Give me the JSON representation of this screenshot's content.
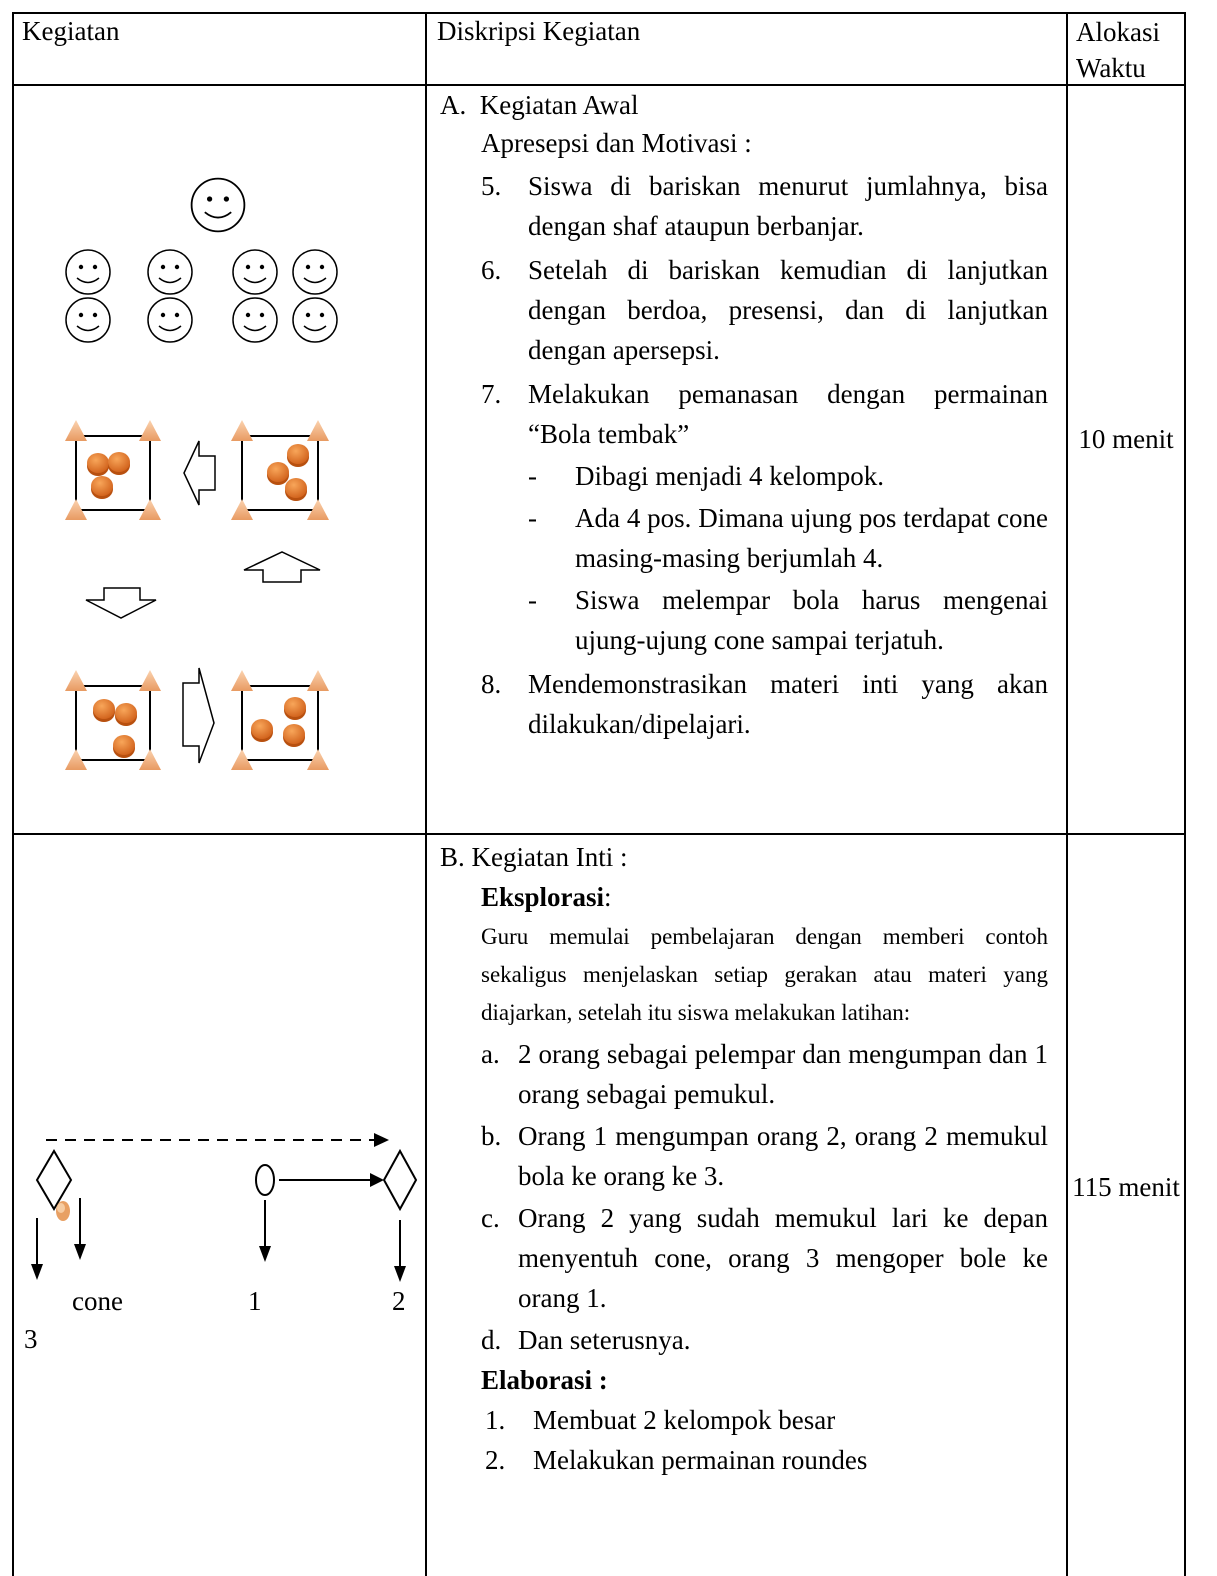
{
  "table": {
    "header": [
      "Kegiatan",
      "Diskripsi Kegiatan",
      "Alokasi Waktu"
    ],
    "rows": [
      {
        "description": {
          "heading": "A.  Kegiatan Awal",
          "subheading": "Apresepsi dan Motivasi :",
          "items": [
            {
              "number": "5.",
              "text": "Siswa di bariskan menurut jumlahnya, bisa dengan shaf ataupun berbanjar."
            },
            {
              "number": "6.",
              "text": "Setelah di bariskan kemudian di lanjutkan dengan berdoa, presensi, dan di lanjutkan dengan apersepsi."
            },
            {
              "number": "7.",
              "text": "Melakukan pemanasan dengan permainan “Bola tembak”",
              "subitems": [
                {
                  "bullet": "-",
                  "text": "Dibagi menjadi 4 kelompok."
                },
                {
                  "bullet": "-",
                  "text": "Ada 4 pos. Dimana ujung pos terdapat cone masing-masing berjumlah 4."
                },
                {
                  "bullet": "-",
                  "text": "Siswa melempar bola harus mengenai ujung-ujung cone sampai terjatuh."
                }
              ]
            },
            {
              "number": "8.",
              "text": "Mendemonstrasikan materi inti yang akan dilakukan/dipelajari."
            }
          ]
        },
        "time": "10 menit"
      },
      {
        "diagram_labels": [
          "cone",
          "1",
          "2",
          "3"
        ],
        "description": {
          "heading": "B. Kegiatan Inti :",
          "eksplorasi_title": "Eksplorasi",
          "eksplorasi_colon": ":",
          "paragraph": "Guru memulai pembelajaran dengan memberi contoh sekaligus menjelaskan setiap gerakan atau materi yang diajarkan, setelah itu siswa melakukan latihan:",
          "items": [
            {
              "number": "a.",
              "text": "2 orang sebagai pelempar dan mengumpan dan 1 orang sebagai pemukul."
            },
            {
              "number": "b.",
              "text": "Orang 1 mengumpan orang 2, orang 2 memukul bola ke orang ke 3."
            },
            {
              "number": "c.",
              "text": "Orang 2 yang sudah memukul lari ke depan menyentuh cone, orang 3 mengoper bole ke orang 1."
            },
            {
              "number": "d.",
              "text": "Dan seterusnya."
            }
          ],
          "elaborasi_title": "Elaborasi :",
          "elaborasi_items": [
            {
              "number": "1.",
              "text": "Membuat 2 kelompok besar"
            },
            {
              "number": "2.",
              "text": "Melakukan permainan roundes"
            }
          ]
        },
        "time": "115 menit"
      }
    ]
  }
}
